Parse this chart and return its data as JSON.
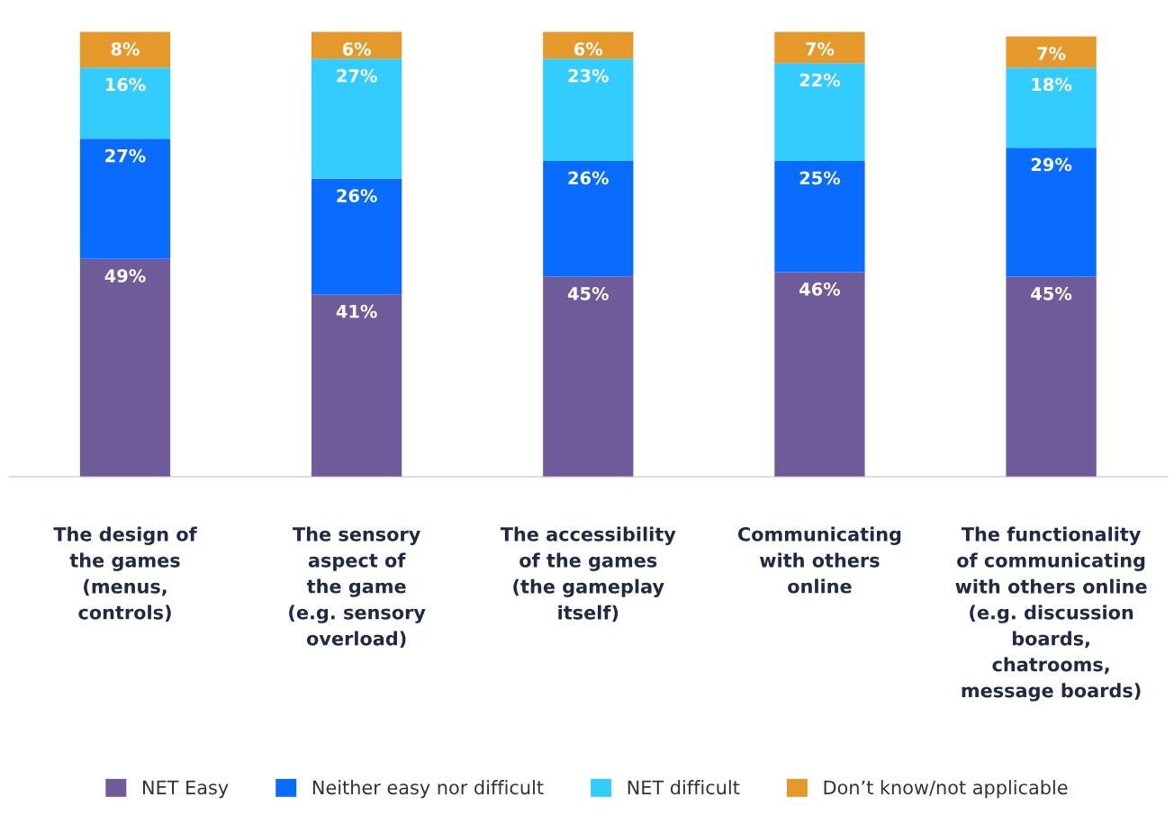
{
  "chart_data": {
    "type": "bar",
    "stacked": true,
    "legend": "bottom",
    "grid": false,
    "categories": [
      "The design of\nthe games\n(menus,\ncontrols)",
      "The sensory\naspect of\nthe game\n(e.g. sensory\noverload)",
      "The accessibility\nof the games\n(the gameplay\nitself)",
      "Communicating\nwith others\nonline",
      "The functionality\nof communicating\nwith others online\n(e.g. discussion\nboards,\nchatrooms,\nmessage boards)"
    ],
    "series": [
      {
        "name": "NET Easy",
        "color": "#6f5a9a",
        "values": [
          49,
          41,
          45,
          46,
          45
        ],
        "value_labels": [
          "49%",
          "41%",
          "45%",
          "46%",
          "45%"
        ]
      },
      {
        "name": "Neither easy nor difficult",
        "color": "#0a6cff",
        "values": [
          27,
          26,
          26,
          25,
          29
        ],
        "value_labels": [
          "27%",
          "26%",
          "26%",
          "25%",
          "29%"
        ]
      },
      {
        "name": "NET difficult",
        "color": "#33ccff",
        "values": [
          16,
          27,
          23,
          22,
          18
        ],
        "value_labels": [
          "16%",
          "27%",
          "23%",
          "22%",
          "18%"
        ]
      },
      {
        "name": "Don’t know/not applicable",
        "color": "#e5992b",
        "values": [
          8,
          6,
          6,
          7,
          7
        ],
        "value_labels": [
          "8%",
          "6%",
          "6%",
          "7%",
          "7%"
        ]
      }
    ]
  }
}
